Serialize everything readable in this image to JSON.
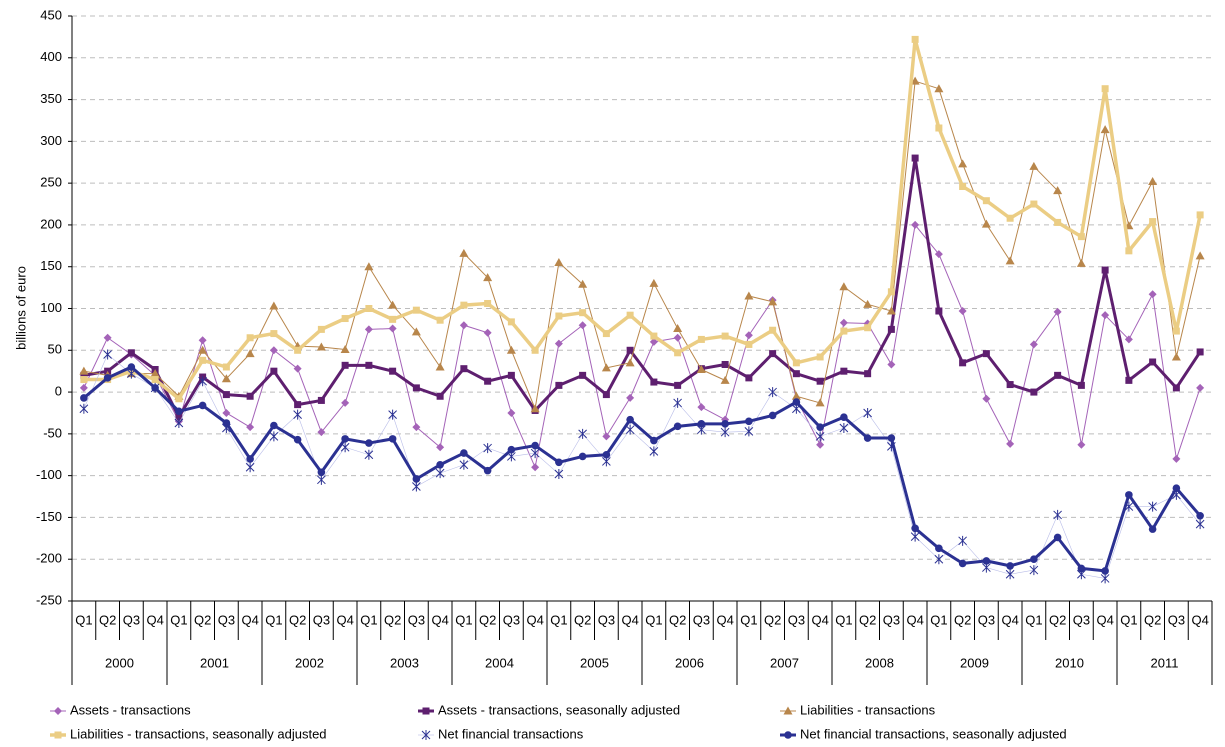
{
  "chart_data": {
    "type": "line",
    "y_label": "billions of euro",
    "ylim": [
      -250,
      450
    ],
    "yticks": [
      -250,
      -200,
      -150,
      -100,
      -50,
      0,
      50,
      100,
      150,
      200,
      250,
      300,
      350,
      400,
      450
    ],
    "grid": true,
    "legend": "bottom",
    "categories": [
      "Q1",
      "Q2",
      "Q3",
      "Q4",
      "Q1",
      "Q2",
      "Q3",
      "Q4",
      "Q1",
      "Q2",
      "Q3",
      "Q4",
      "Q1",
      "Q2",
      "Q3",
      "Q4",
      "Q1",
      "Q2",
      "Q3",
      "Q4",
      "Q1",
      "Q2",
      "Q3",
      "Q4",
      "Q1",
      "Q2",
      "Q3",
      "Q4",
      "Q1",
      "Q2",
      "Q3",
      "Q4",
      "Q1",
      "Q2",
      "Q3",
      "Q4",
      "Q1",
      "Q2",
      "Q3",
      "Q4",
      "Q1",
      "Q2",
      "Q3",
      "Q4",
      "Q1",
      "Q2",
      "Q3",
      "Q4"
    ],
    "years": [
      "2000",
      "2001",
      "2002",
      "2003",
      "2004",
      "2005",
      "2006",
      "2007",
      "2008",
      "2009",
      "2010",
      "2011"
    ],
    "series": [
      {
        "name": "Assets - transactions",
        "color": "#a463b8",
        "marker": "diamond",
        "line_width": 1,
        "values": [
          5,
          65,
          45,
          20,
          -35,
          62,
          -25,
          -42,
          50,
          28,
          -48,
          -13,
          75,
          76,
          -42,
          -66,
          80,
          71,
          -25,
          -90,
          58,
          80,
          -53,
          -7,
          60,
          65,
          -18,
          -33,
          68,
          110,
          -8,
          -63,
          83,
          82,
          33,
          200,
          165,
          97,
          -8,
          -62,
          57,
          96,
          -63,
          92,
          63,
          117,
          -80,
          5
        ]
      },
      {
        "name": "Assets - transactions, seasonally adjusted",
        "color": "#5e1f6f",
        "marker": "square",
        "line_width": 3,
        "values": [
          20,
          25,
          47,
          27,
          -30,
          18,
          -3,
          -5,
          25,
          -15,
          -10,
          32,
          32,
          25,
          5,
          -5,
          28,
          13,
          20,
          -22,
          8,
          20,
          -3,
          50,
          12,
          8,
          28,
          33,
          17,
          46,
          22,
          13,
          25,
          22,
          75,
          280,
          97,
          35,
          46,
          9,
          0,
          20,
          8,
          146,
          14,
          36,
          5,
          48
        ]
      },
      {
        "name": "Liabilities - transactions",
        "color": "#b8864b",
        "marker": "triangle",
        "line_width": 1,
        "values": [
          25,
          20,
          22,
          22,
          -5,
          50,
          16,
          46,
          103,
          55,
          54,
          51,
          150,
          104,
          72,
          30,
          166,
          137,
          50,
          -20,
          155,
          129,
          29,
          35,
          130,
          76,
          27,
          14,
          115,
          108,
          -5,
          -13,
          126,
          105,
          97,
          372,
          363,
          273,
          201,
          157,
          270,
          241,
          154,
          314,
          199,
          252,
          42,
          163
        ]
      },
      {
        "name": "Liabilities - transactions, seasonally adjusted",
        "color": "#ebcd84",
        "marker": "square",
        "line_width": 3.5,
        "values": [
          15,
          15,
          25,
          15,
          -8,
          38,
          30,
          65,
          70,
          50,
          75,
          88,
          100,
          87,
          98,
          86,
          104,
          106,
          84,
          50,
          91,
          95,
          70,
          92,
          67,
          47,
          63,
          67,
          57,
          74,
          35,
          42,
          73,
          77,
          120,
          422,
          316,
          246,
          229,
          208,
          225,
          203,
          186,
          363,
          169,
          204,
          73,
          212
        ]
      },
      {
        "name": "Net financial transactions",
        "color": "#2b3192",
        "marker": "asterisk",
        "line_width": 0.6,
        "values": [
          -20,
          45,
          22,
          5,
          -37,
          13,
          -43,
          -90,
          -53,
          -27,
          -105,
          -66,
          -75,
          -27,
          -113,
          -97,
          -87,
          -67,
          -77,
          -73,
          -98,
          -50,
          -83,
          -45,
          -71,
          -13,
          -45,
          -48,
          -47,
          0,
          -20,
          -53,
          -43,
          -25,
          -65,
          -173,
          -200,
          -178,
          -210,
          -218,
          -213,
          -147,
          -218,
          -223,
          -137,
          -137,
          -123,
          -158
        ]
      },
      {
        "name": "Net financial transactions, seasonally adjusted",
        "color": "#2b3192",
        "marker": "circle",
        "line_width": 3,
        "values": [
          -7,
          17,
          30,
          5,
          -23,
          -16,
          -37,
          -80,
          -40,
          -57,
          -96,
          -56,
          -61,
          -56,
          -104,
          -87,
          -73,
          -94,
          -69,
          -64,
          -84,
          -77,
          -75,
          -33,
          -58,
          -41,
          -38,
          -38,
          -35,
          -28,
          -12,
          -42,
          -30,
          -55,
          -55,
          -163,
          -187,
          -205,
          -202,
          -208,
          -200,
          -174,
          -211,
          -214,
          -123,
          -164,
          -115,
          -148
        ]
      }
    ]
  }
}
